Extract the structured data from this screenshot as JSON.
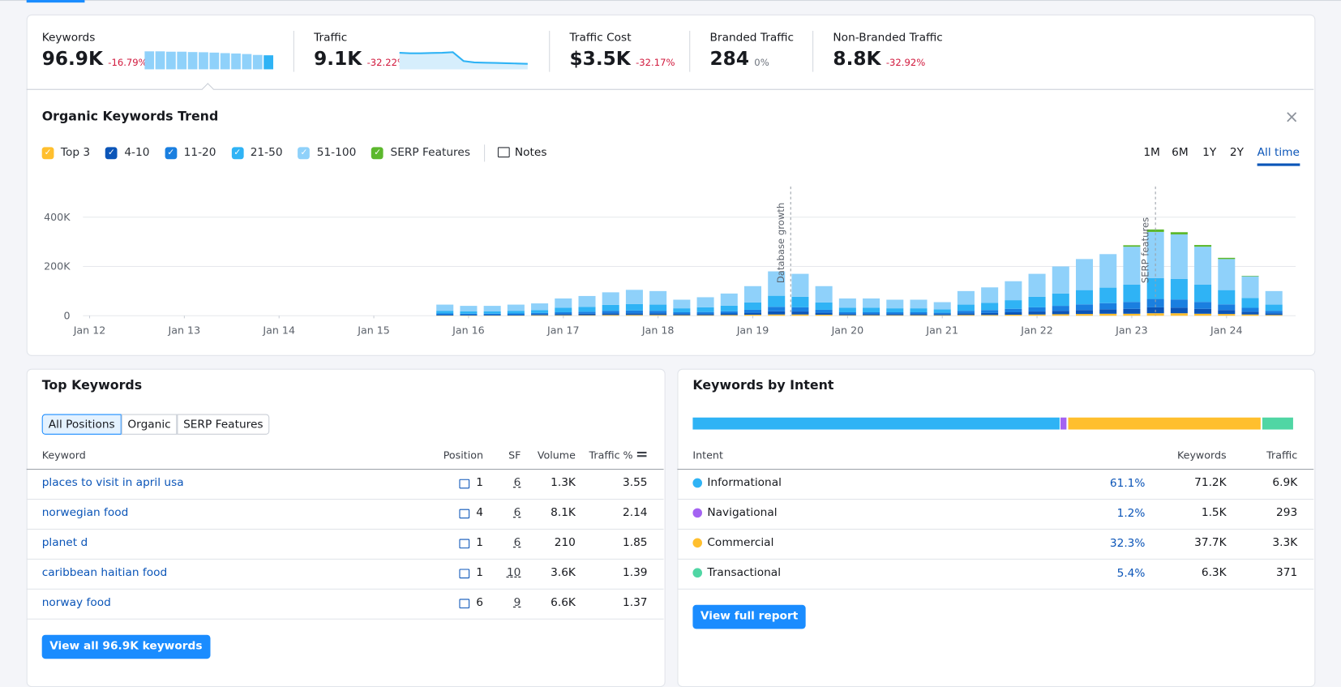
{
  "summary": [
    {
      "label": "Keywords",
      "value": "96.9K",
      "change": "-16.79%",
      "trend": [
        100,
        100,
        98,
        98,
        96,
        95,
        93,
        90,
        88,
        85,
        80,
        78
      ]
    },
    {
      "label": "Traffic",
      "value": "9.1K",
      "change": "-32.22%",
      "trend": [
        60,
        58,
        58,
        59,
        60,
        62,
        30,
        25,
        24,
        23,
        22,
        21,
        20
      ]
    },
    {
      "label": "Traffic Cost",
      "value": "$3.5K",
      "change": "-32.17%"
    },
    {
      "label": "Branded Traffic",
      "value": "284",
      "change": "0%"
    },
    {
      "label": "Non-Branded Traffic",
      "value": "8.8K",
      "change": "-32.92%"
    }
  ],
  "chart_data": {
    "type": "bar",
    "title": "Organic Keywords Trend",
    "stacked": true,
    "notes_label": "Notes",
    "ranges": [
      "1M",
      "6M",
      "1Y",
      "2Y",
      "All time"
    ],
    "selected_range": "All time",
    "x": [
      2015.75,
      2016,
      2016.25,
      2016.5,
      2016.75,
      2017,
      2017.25,
      2017.5,
      2017.75,
      2018,
      2018.25,
      2018.5,
      2018.75,
      2019,
      2019.25,
      2019.5,
      2019.75,
      2020,
      2020.25,
      2020.5,
      2020.75,
      2021,
      2021.25,
      2021.5,
      2021.75,
      2022,
      2022.25,
      2022.5,
      2022.75,
      2023,
      2023.25,
      2023.5,
      2023.75,
      2024,
      2024.25,
      2024.5
    ],
    "series": [
      {
        "name": "Top 3",
        "color": "#ffbf2e",
        "values": [
          1,
          1,
          1,
          1,
          2,
          2,
          2,
          3,
          3,
          3,
          2,
          2,
          3,
          4,
          5,
          5,
          4,
          2,
          2,
          2,
          2,
          2,
          3,
          3,
          4,
          5,
          6,
          7,
          8,
          8,
          10,
          10,
          8,
          7,
          5,
          3
        ]
      },
      {
        "name": "4-10",
        "color": "#0b55b8",
        "values": [
          3,
          3,
          3,
          3,
          4,
          5,
          6,
          7,
          7,
          7,
          5,
          5,
          6,
          8,
          13,
          12,
          8,
          5,
          5,
          5,
          5,
          4,
          7,
          8,
          10,
          12,
          14,
          16,
          18,
          20,
          24,
          23,
          20,
          16,
          11,
          7
        ]
      },
      {
        "name": "11-20",
        "color": "#1a7fe0",
        "values": [
          5,
          4,
          4,
          5,
          5,
          7,
          8,
          10,
          11,
          10,
          7,
          8,
          9,
          12,
          18,
          17,
          12,
          7,
          7,
          7,
          7,
          6,
          10,
          12,
          14,
          17,
          20,
          23,
          25,
          28,
          34,
          33,
          28,
          23,
          16,
          10
        ]
      },
      {
        "name": "21-50",
        "color": "#2fb3f5",
        "values": [
          11,
          10,
          10,
          11,
          12,
          18,
          20,
          24,
          26,
          25,
          16,
          19,
          23,
          30,
          45,
          43,
          30,
          18,
          18,
          16,
          16,
          14,
          25,
          29,
          35,
          43,
          50,
          58,
          63,
          70,
          85,
          83,
          70,
          58,
          40,
          25
        ]
      },
      {
        "name": "51-100",
        "color": "#8fd1fa",
        "values": [
          25,
          22,
          22,
          25,
          27,
          38,
          44,
          51,
          58,
          55,
          35,
          41,
          49,
          66,
          99,
          93,
          66,
          38,
          38,
          35,
          35,
          29,
          55,
          63,
          77,
          93,
          110,
          126,
          136,
          154,
          187,
          181,
          154,
          126,
          88,
          55
        ]
      },
      {
        "name": "SERP Features",
        "color": "#5cb82d",
        "values": [
          0,
          0,
          0,
          0,
          0,
          0,
          0,
          0,
          0,
          0,
          0,
          0,
          0,
          0,
          0,
          0,
          0,
          0,
          0,
          0,
          0,
          0,
          0,
          0,
          0,
          0,
          0,
          0,
          0,
          6,
          10,
          9,
          7,
          5,
          2,
          0
        ]
      }
    ],
    "xlim": [
      2011.93,
      2024.73
    ],
    "xticks": [
      {
        "value": 2012,
        "label": "Jan 12"
      },
      {
        "value": 2013,
        "label": "Jan 13"
      },
      {
        "value": 2014,
        "label": "Jan 14"
      },
      {
        "value": 2015,
        "label": "Jan 15"
      },
      {
        "value": 2016,
        "label": "Jan 16"
      },
      {
        "value": 2017,
        "label": "Jan 17"
      },
      {
        "value": 2018,
        "label": "Jan 18"
      },
      {
        "value": 2019,
        "label": "Jan 19"
      },
      {
        "value": 2020,
        "label": "Jan 20"
      },
      {
        "value": 2021,
        "label": "Jan 21"
      },
      {
        "value": 2022,
        "label": "Jan 22"
      },
      {
        "value": 2023,
        "label": "Jan 23"
      },
      {
        "value": 2024,
        "label": "Jan 24"
      }
    ],
    "ylim": [
      0,
      500
    ],
    "yticks": [
      0,
      {
        "value": 200,
        "label": "200K"
      },
      {
        "value": 400,
        "label": "400K"
      }
    ],
    "grid": true,
    "annotations": [
      {
        "x": 2019.4,
        "text": "Database growth"
      },
      {
        "x": 2023.25,
        "text": "SERP features"
      }
    ]
  },
  "top_keywords": {
    "title": "Top Keywords",
    "tabs": [
      "All Positions",
      "Organic",
      "SERP Features"
    ],
    "selected_tab": "All Positions",
    "columns": [
      "Keyword",
      "Position",
      "SF",
      "Volume",
      "Traffic %"
    ],
    "rows": [
      [
        "places to visit in april usa",
        1,
        6,
        "1.3K",
        3.55
      ],
      [
        "norwegian food",
        4,
        6,
        "8.1K",
        2.14
      ],
      [
        "planet d",
        1,
        6,
        "210",
        1.85
      ],
      [
        "caribbean haitian food",
        1,
        10,
        "3.6K",
        1.39
      ],
      [
        "norway food",
        6,
        9,
        "6.6K",
        1.37
      ]
    ],
    "button": "View all 96.9K keywords"
  },
  "intent": {
    "title": "Keywords by Intent",
    "columns": [
      "Intent",
      "Keywords",
      "Traffic"
    ],
    "categories": [
      "Informational",
      "Navigational",
      "Commercial",
      "Transactional"
    ],
    "colors": [
      "#2fb3f5",
      "#a463f2",
      "#ffbf2e",
      "#50d6a4"
    ],
    "values": [
      61.1,
      1.2,
      32.3,
      5.4
    ],
    "value_labels": [
      "61.1%",
      "1.2%",
      "32.3%",
      "5.4%"
    ],
    "keywords": [
      "71.2K",
      "1.5K",
      "37.7K",
      "6.3K"
    ],
    "traffic": [
      "6.9K",
      293,
      "3.3K",
      371
    ],
    "button": "View full report"
  }
}
